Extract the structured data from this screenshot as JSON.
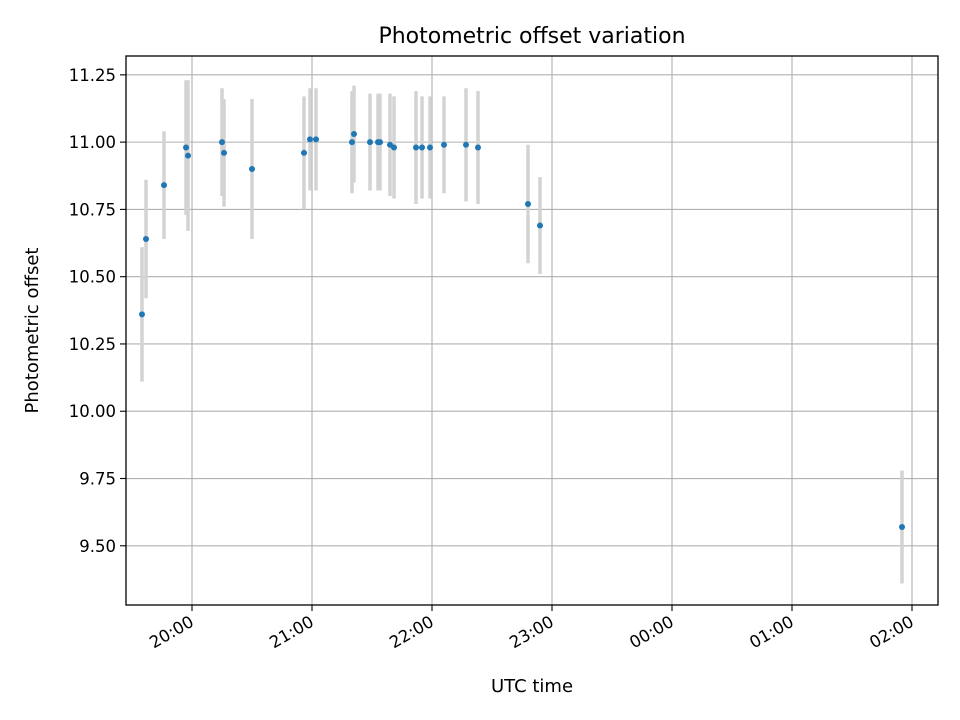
{
  "chart_data": {
    "type": "scatter",
    "title": "Photometric offset variation",
    "xlabel": "UTC time",
    "ylabel": "Photometric offset",
    "x_axis_type": "time",
    "xlim": [
      "19:27",
      "02:13"
    ],
    "ylim": [
      9.28,
      11.32
    ],
    "x_ticks": [
      "20:00",
      "21:00",
      "22:00",
      "23:00",
      "00:00",
      "01:00",
      "02:00"
    ],
    "y_ticks": [
      "9.50",
      "9.75",
      "10.00",
      "10.25",
      "10.50",
      "10.75",
      "11.00",
      "11.25"
    ],
    "grid": true,
    "colors": {
      "points": "#1f77b4",
      "error_bars": "#d3d3d3",
      "grid": "#b0b0b0"
    },
    "series": [
      {
        "points": [
          {
            "x": "19:35",
            "y": 10.36,
            "err": 0.25
          },
          {
            "x": "19:37",
            "y": 10.64,
            "err": 0.22
          },
          {
            "x": "19:46",
            "y": 10.84,
            "err": 0.2
          },
          {
            "x": "19:57",
            "y": 10.98,
            "err": 0.25
          },
          {
            "x": "19:58",
            "y": 10.95,
            "err": 0.28
          },
          {
            "x": "20:15",
            "y": 11.0,
            "err": 0.2
          },
          {
            "x": "20:16",
            "y": 10.96,
            "err": 0.2
          },
          {
            "x": "20:30",
            "y": 10.9,
            "err": 0.26
          },
          {
            "x": "20:56",
            "y": 10.96,
            "err": 0.21
          },
          {
            "x": "20:59",
            "y": 11.01,
            "err": 0.19
          },
          {
            "x": "21:02",
            "y": 11.01,
            "err": 0.19
          },
          {
            "x": "21:20",
            "y": 11.0,
            "err": 0.19
          },
          {
            "x": "21:21",
            "y": 11.03,
            "err": 0.18
          },
          {
            "x": "21:29",
            "y": 11.0,
            "err": 0.18
          },
          {
            "x": "21:33",
            "y": 11.0,
            "err": 0.18
          },
          {
            "x": "21:34",
            "y": 11.0,
            "err": 0.18
          },
          {
            "x": "21:39",
            "y": 10.99,
            "err": 0.19
          },
          {
            "x": "21:41",
            "y": 10.98,
            "err": 0.19
          },
          {
            "x": "21:52",
            "y": 10.98,
            "err": 0.21
          },
          {
            "x": "21:55",
            "y": 10.98,
            "err": 0.19
          },
          {
            "x": "21:59",
            "y": 10.98,
            "err": 0.19
          },
          {
            "x": "22:06",
            "y": 10.99,
            "err": 0.18
          },
          {
            "x": "22:17",
            "y": 10.99,
            "err": 0.21
          },
          {
            "x": "22:23",
            "y": 10.98,
            "err": 0.21
          },
          {
            "x": "22:48",
            "y": 10.77,
            "err": 0.22
          },
          {
            "x": "22:54",
            "y": 10.69,
            "err": 0.18
          },
          {
            "x": "01:55",
            "y": 9.57,
            "err": 0.21
          }
        ]
      }
    ]
  }
}
